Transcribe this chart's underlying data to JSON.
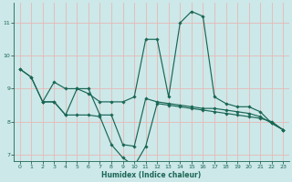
{
  "xlabel": "Humidex (Indice chaleur)",
  "bg_color": "#cce8e8",
  "grid_color": "#e8b8b8",
  "line_color": "#1a6655",
  "xlim": [
    -0.5,
    23.5
  ],
  "ylim": [
    6.8,
    11.6
  ],
  "yticks": [
    7,
    8,
    9,
    10,
    11
  ],
  "xticks": [
    0,
    1,
    2,
    3,
    4,
    5,
    6,
    7,
    8,
    9,
    10,
    11,
    12,
    13,
    14,
    15,
    16,
    17,
    18,
    19,
    20,
    21,
    22,
    23
  ],
  "line1_x": [
    0,
    1,
    2,
    3,
    4,
    5,
    6,
    7,
    8,
    9,
    10,
    11,
    12,
    13,
    14,
    15,
    16,
    17,
    18,
    19,
    20,
    21,
    22,
    23
  ],
  "line1_y": [
    9.6,
    9.35,
    8.6,
    9.2,
    9.0,
    9.0,
    8.85,
    8.6,
    8.6,
    8.6,
    8.75,
    10.5,
    10.5,
    8.75,
    11.0,
    11.35,
    11.2,
    8.75,
    8.55,
    8.45,
    8.45,
    8.3,
    7.95,
    7.75
  ],
  "line2_x": [
    0,
    1,
    2,
    3,
    4,
    5,
    6,
    7,
    8,
    9,
    10,
    11,
    12,
    13,
    14,
    15,
    16,
    17,
    18,
    19,
    20,
    21,
    22,
    23
  ],
  "line2_y": [
    9.6,
    9.35,
    8.6,
    8.6,
    8.2,
    9.0,
    9.0,
    8.2,
    8.2,
    7.3,
    7.25,
    8.7,
    8.6,
    8.55,
    8.5,
    8.45,
    8.4,
    8.4,
    8.35,
    8.3,
    8.25,
    8.15,
    7.95,
    7.75
  ],
  "line3_x": [
    2,
    3,
    4,
    5,
    6,
    7,
    8,
    9,
    10,
    11,
    12,
    13,
    14,
    15,
    16,
    17,
    18,
    19,
    20,
    21,
    22,
    23
  ],
  "line3_y": [
    8.6,
    8.6,
    8.2,
    8.2,
    8.2,
    8.15,
    7.3,
    6.9,
    6.65,
    7.25,
    8.55,
    8.5,
    8.45,
    8.4,
    8.35,
    8.3,
    8.25,
    8.2,
    8.15,
    8.1,
    8.0,
    7.75
  ]
}
